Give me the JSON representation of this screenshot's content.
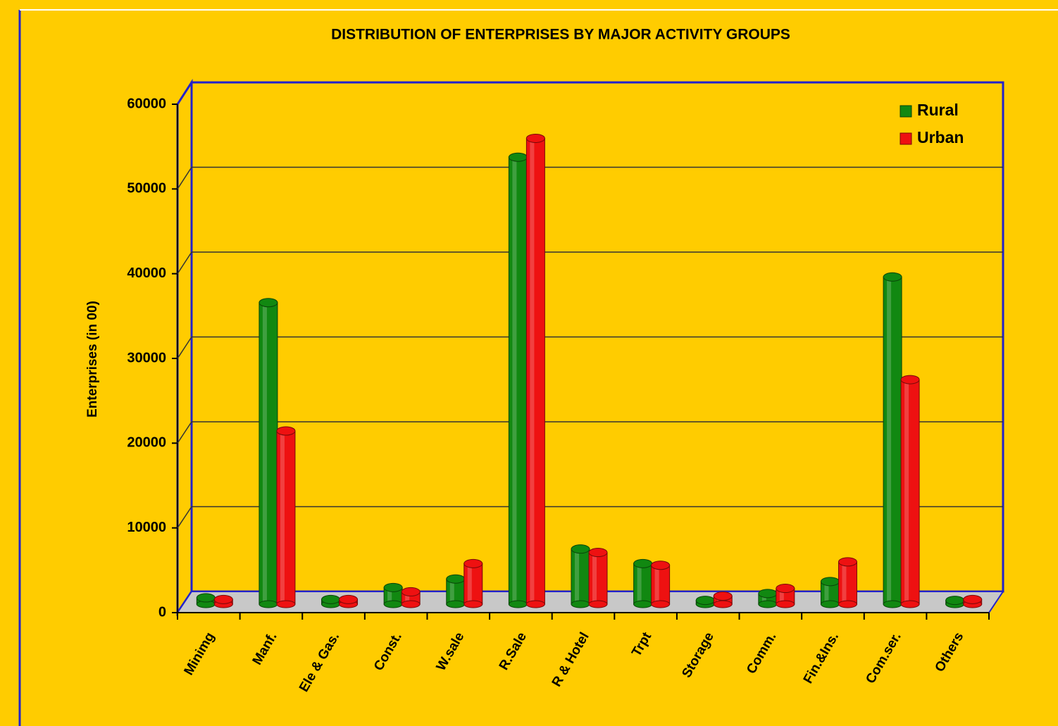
{
  "chart_data": {
    "type": "bar",
    "title": "DISTRIBUTION OF ENTERPRISES BY MAJOR ACTIVITY GROUPS",
    "y_label": "Enterprises (in 00)",
    "categories": [
      "Minimg",
      "Manf.",
      "Ele & Gas.",
      "Const.",
      "W.sale",
      "R.Sale",
      "R & Hotel",
      "Trpt",
      "Storage",
      "Comm.",
      "Fin.&Ins.",
      "Com.ser.",
      "Others"
    ],
    "series": [
      {
        "name": "Rural",
        "color": "#118811",
        "values": [
          500,
          35000,
          300,
          1700,
          2700,
          52000,
          6200,
          4500,
          200,
          1000,
          2400,
          38000,
          200
        ]
      },
      {
        "name": "Urban",
        "color": "#ee1111",
        "values": [
          300,
          20000,
          300,
          1200,
          4500,
          54200,
          5800,
          4300,
          700,
          1600,
          4700,
          26000,
          300
        ]
      }
    ],
    "ylim": [
      0,
      60000
    ],
    "yticks": [
      0,
      10000,
      20000,
      30000,
      40000,
      50000,
      60000
    ],
    "grid": true,
    "legend": "top-right"
  }
}
